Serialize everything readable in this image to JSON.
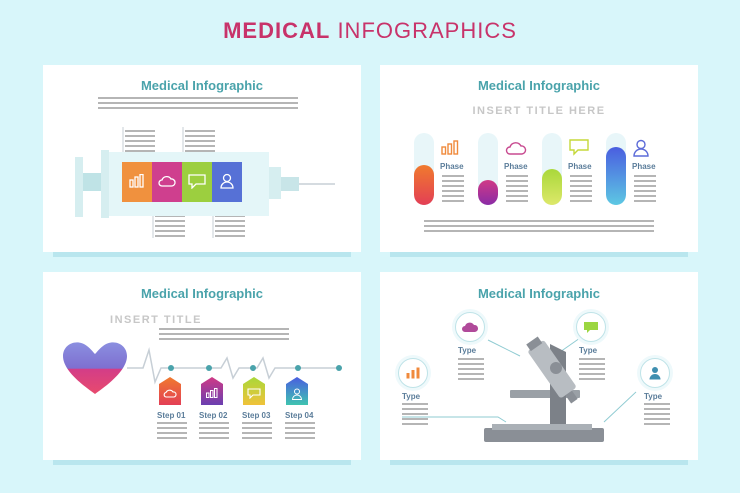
{
  "header": {
    "title_bold": "MEDICAL",
    "title_light": "INFOGRAPHICS"
  },
  "colors": {
    "title": "#c8336a",
    "card_title": "#4aa3ab",
    "orange": "#f08a3c",
    "pink": "#d83a8a",
    "green": "#9bd640",
    "blue": "#4d6fd9"
  },
  "cards": {
    "syringe": {
      "title": "Medical Infographic",
      "icons": [
        "bar-chart-icon",
        "cloud-icon",
        "chat-bubble-icon",
        "user-icon"
      ]
    },
    "tubes": {
      "title": "Medical Infographic",
      "subtitle": "INSERT TITLE HERE",
      "phases": [
        {
          "label": "Phase",
          "icon": "bar-chart-icon",
          "level": 0.55
        },
        {
          "label": "Phase",
          "icon": "cloud-icon",
          "level": 0.35
        },
        {
          "label": "Phase",
          "icon": "chat-bubble-icon",
          "level": 0.5
        },
        {
          "label": "Phase",
          "icon": "user-icon",
          "level": 0.8
        }
      ]
    },
    "heart": {
      "title": "Medical Infographic",
      "subtitle": "INSERT TITLE",
      "steps": [
        {
          "label": "Step 01",
          "icon": "cloud-icon"
        },
        {
          "label": "Step 02",
          "icon": "bar-chart-icon"
        },
        {
          "label": "Step 03",
          "icon": "chat-bubble-icon"
        },
        {
          "label": "Step 04",
          "icon": "user-icon"
        }
      ]
    },
    "microscope": {
      "title": "Medical Infographic",
      "types": [
        {
          "label": "Type",
          "icon": "cloud-icon"
        },
        {
          "label": "Type",
          "icon": "chat-bubble-icon"
        },
        {
          "label": "Type",
          "icon": "bar-chart-icon"
        },
        {
          "label": "Type",
          "icon": "user-icon"
        }
      ]
    }
  }
}
